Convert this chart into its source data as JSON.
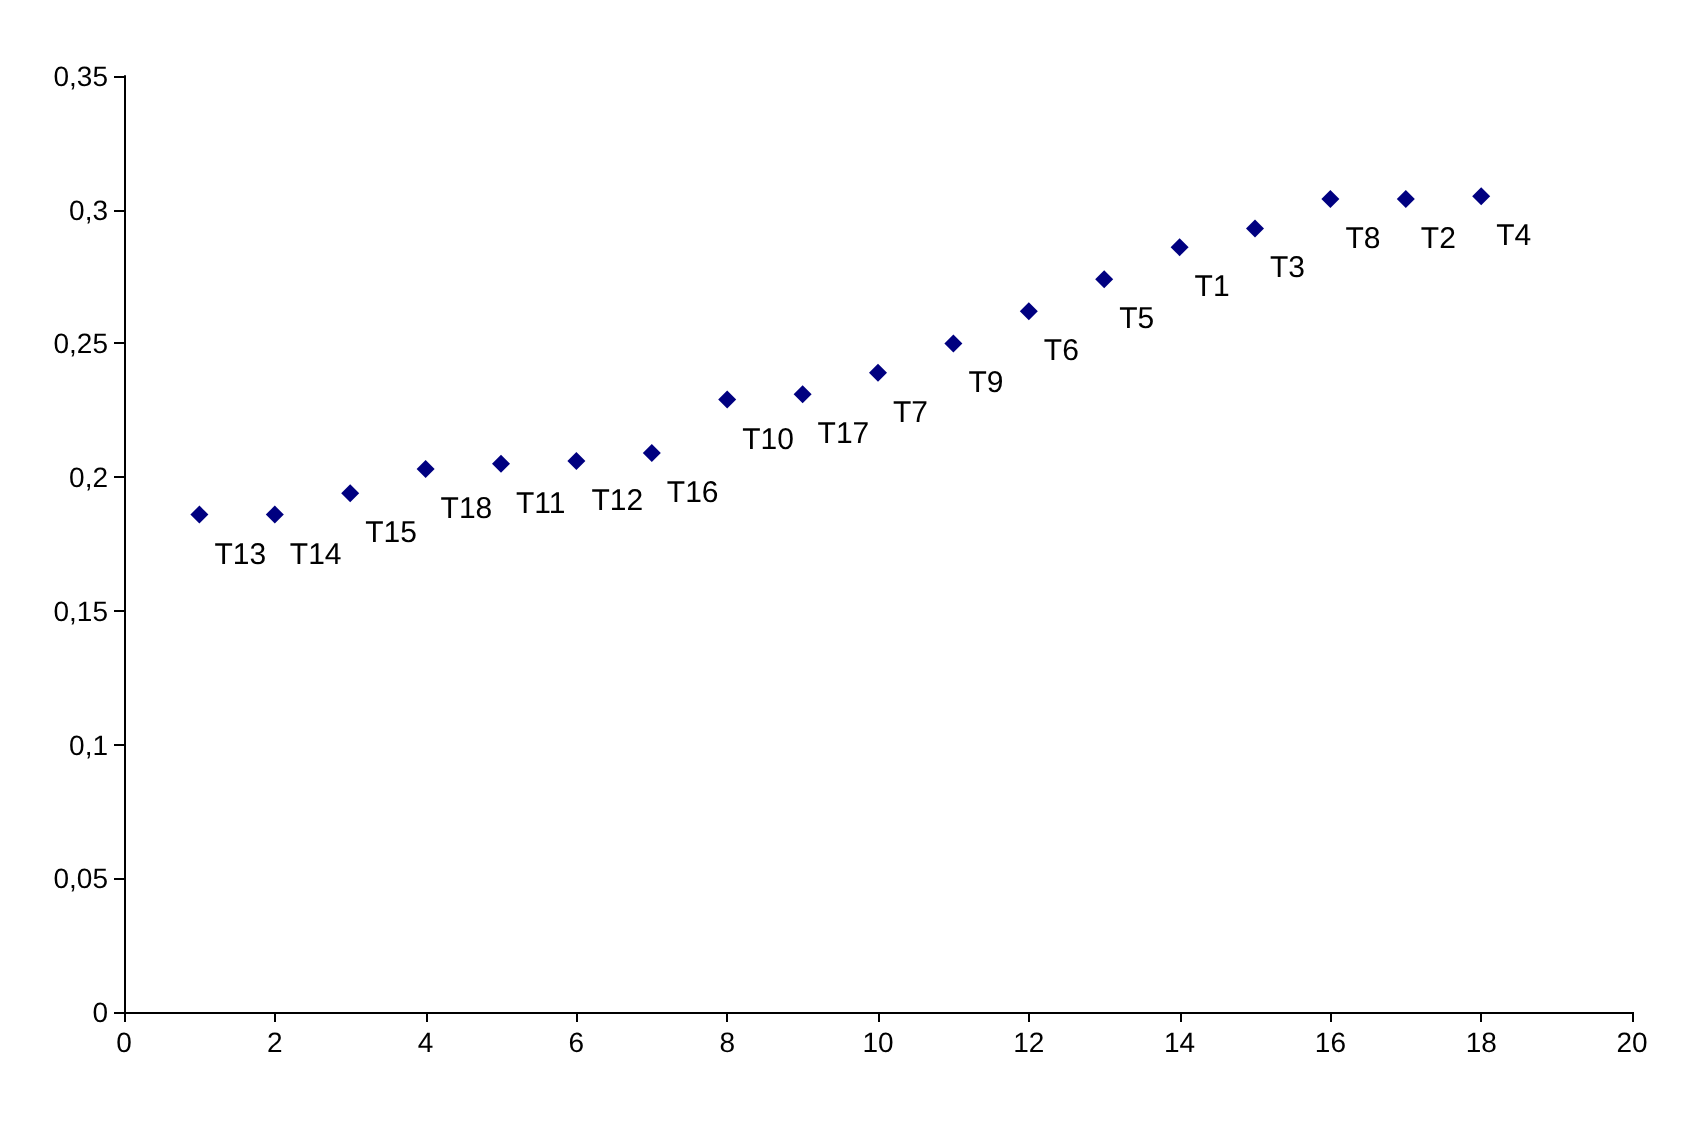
{
  "chart_data": {
    "type": "scatter",
    "x": [
      1,
      2,
      3,
      4,
      5,
      6,
      7,
      8,
      9,
      10,
      11,
      12,
      13,
      14,
      15,
      16,
      17,
      18
    ],
    "series": [
      {
        "color": "#000080",
        "values": [
          0.186,
          0.186,
          0.194,
          0.203,
          0.205,
          0.206,
          0.209,
          0.229,
          0.231,
          0.239,
          0.25,
          0.262,
          0.274,
          0.286,
          0.293,
          0.304,
          0.304,
          0.305
        ],
        "value_labels": [
          "T13",
          "T14",
          "T15",
          "T18",
          "T11",
          "T12",
          "T16",
          "T10",
          "T17",
          "T7",
          "T9",
          "T6",
          "T5",
          "T1",
          "T3",
          "T8",
          "T2",
          "T4"
        ]
      }
    ],
    "xlim": [
      0,
      20
    ],
    "xticks": [
      0,
      2,
      4,
      6,
      8,
      10,
      12,
      14,
      16,
      18,
      20
    ],
    "ylim": [
      0,
      0.35
    ],
    "yticks": [
      {
        "value": 0,
        "label": "0"
      },
      {
        "value": 0.05,
        "label": "0,05"
      },
      {
        "value": 0.1,
        "label": "0,1"
      },
      {
        "value": 0.15,
        "label": "0,15"
      },
      {
        "value": 0.2,
        "label": "0,2"
      },
      {
        "value": 0.25,
        "label": "0,25"
      },
      {
        "value": 0.3,
        "label": "0,3"
      },
      {
        "value": 0.35,
        "label": "0,35"
      }
    ],
    "marker": "diamond"
  }
}
